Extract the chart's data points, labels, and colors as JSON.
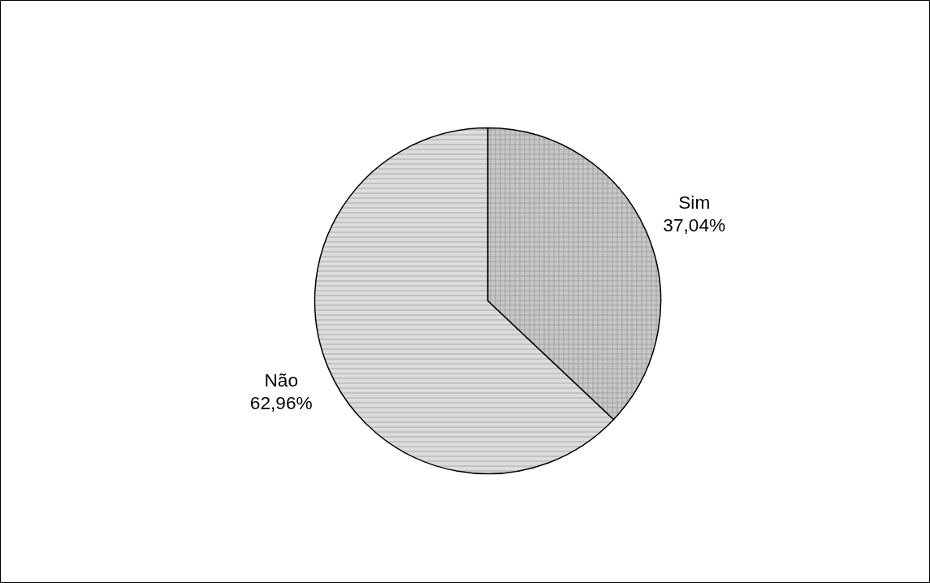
{
  "chart_data": {
    "type": "pie",
    "categories": [
      "Sim",
      "Não"
    ],
    "values": [
      37.04,
      62.96
    ],
    "colors": [
      "#c8c8c8",
      "#dcdcdc"
    ],
    "value_labels": [
      "37,04%",
      "62,96%"
    ]
  }
}
